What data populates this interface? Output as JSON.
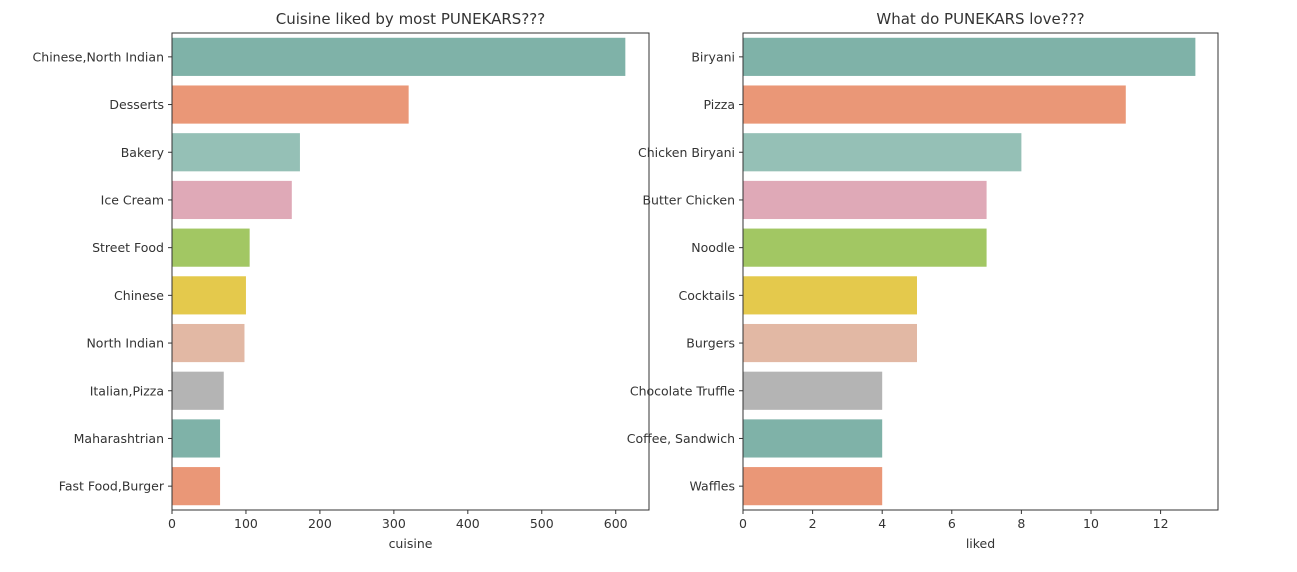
{
  "palette": [
    "#7fb2a8",
    "#ea9777",
    "#95c0b6",
    "#dfa9b7",
    "#a2c763",
    "#e4c94c",
    "#e2b8a4",
    "#b4b4b4"
  ],
  "chart_data": [
    {
      "type": "bar",
      "orientation": "horizontal",
      "title": "Cuisine liked by most PUNEKARS???",
      "xlabel": "cuisine",
      "ylabel": "",
      "categories": [
        "Chinese,North Indian",
        "Desserts",
        "Bakery",
        "Ice Cream",
        "Street Food",
        "Chinese",
        "North Indian",
        "Italian,Pizza",
        "Maharashtrian",
        "Fast Food,Burger"
      ],
      "values": [
        613,
        320,
        173,
        162,
        105,
        100,
        98,
        70,
        65,
        65
      ],
      "xlim": [
        0,
        645
      ],
      "xticks": [
        0,
        100,
        200,
        300,
        400,
        500,
        600
      ],
      "grid": false
    },
    {
      "type": "bar",
      "orientation": "horizontal",
      "title": "What do PUNEKARS love???",
      "xlabel": "liked",
      "ylabel": "",
      "categories": [
        "Biryani",
        "Pizza",
        "Chicken Biryani",
        "Butter Chicken",
        "Noodle",
        "Cocktails",
        "Burgers",
        "Chocolate Truffle",
        "Coffee, Sandwich",
        "Waffles"
      ],
      "values": [
        13,
        11,
        8,
        7,
        7,
        5,
        5,
        4,
        4,
        4
      ],
      "xlim": [
        0,
        13.65
      ],
      "xticks": [
        0,
        2,
        4,
        6,
        8,
        10,
        12
      ],
      "grid": false
    }
  ]
}
